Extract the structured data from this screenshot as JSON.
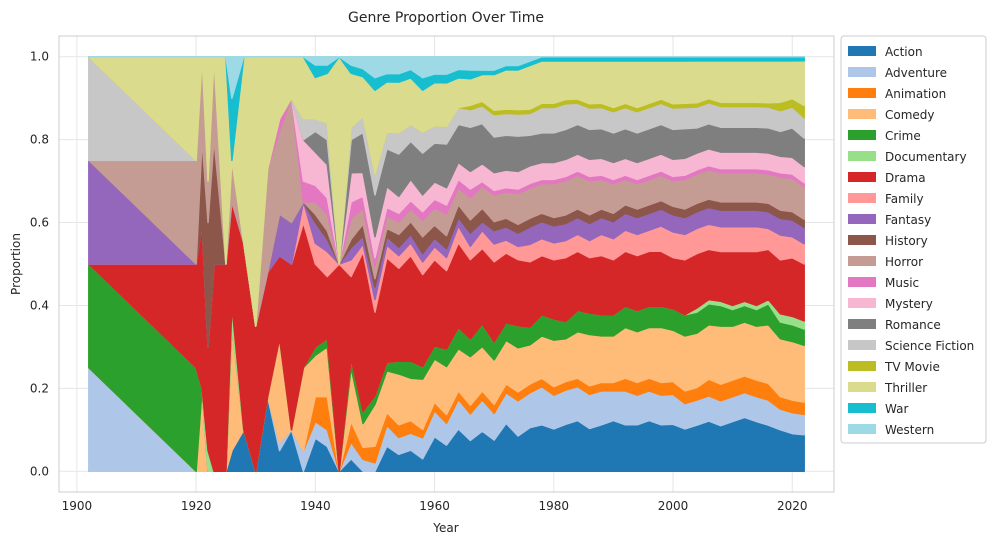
{
  "chart_data": {
    "type": "area",
    "stacked": true,
    "normalized": true,
    "title": "Genre Proportion Over Time",
    "xlabel": "Year",
    "ylabel": "Proportion",
    "xlim": [
      1897,
      2027
    ],
    "ylim": [
      -0.05,
      1.05
    ],
    "xticks": [
      1900,
      1920,
      1940,
      1960,
      1980,
      2000,
      2020
    ],
    "yticks": [
      0.0,
      0.2,
      0.4,
      0.6,
      0.8,
      1.0
    ],
    "grid": true,
    "legend_position": "outside-right",
    "x": [
      1902,
      1920,
      1921,
      1922,
      1923,
      1925,
      1926,
      1928,
      1930,
      1932,
      1934,
      1936,
      1938,
      1940,
      1942,
      1944,
      1946,
      1948,
      1950,
      1952,
      1954,
      1956,
      1958,
      1960,
      1962,
      1964,
      1966,
      1968,
      1970,
      1972,
      1974,
      1976,
      1978,
      1980,
      1982,
      1984,
      1986,
      1988,
      1990,
      1992,
      1994,
      1996,
      1998,
      2000,
      2002,
      2004,
      2006,
      2008,
      2010,
      2012,
      2014,
      2016,
      2018,
      2020,
      2022
    ],
    "series": [
      {
        "name": "Action",
        "color": "#1f77b4",
        "values": [
          0.0,
          0.0,
          0.0,
          0.0,
          0.0,
          0.0,
          0.05,
          0.1,
          0.0,
          0.18,
          0.05,
          0.1,
          0.0,
          0.08,
          0.06,
          0.0,
          0.03,
          0.0,
          0.0,
          0.06,
          0.04,
          0.05,
          0.03,
          0.08,
          0.06,
          0.1,
          0.07,
          0.09,
          0.07,
          0.11,
          0.08,
          0.1,
          0.11,
          0.1,
          0.11,
          0.12,
          0.1,
          0.11,
          0.12,
          0.11,
          0.11,
          0.12,
          0.11,
          0.11,
          0.1,
          0.11,
          0.12,
          0.11,
          0.12,
          0.13,
          0.12,
          0.11,
          0.1,
          0.09,
          0.09
        ]
      },
      {
        "name": "Adventure",
        "color": "#aec7e8",
        "values": [
          0.333,
          0.0,
          0.0,
          0.0,
          0.0,
          0.0,
          0.0,
          0.0,
          0.0,
          0.0,
          0.02,
          0.0,
          0.05,
          0.04,
          0.04,
          0.0,
          0.04,
          0.03,
          0.02,
          0.05,
          0.04,
          0.04,
          0.05,
          0.06,
          0.05,
          0.07,
          0.06,
          0.07,
          0.06,
          0.07,
          0.08,
          0.08,
          0.09,
          0.08,
          0.08,
          0.08,
          0.08,
          0.08,
          0.07,
          0.08,
          0.07,
          0.07,
          0.07,
          0.07,
          0.06,
          0.06,
          0.06,
          0.06,
          0.06,
          0.06,
          0.06,
          0.06,
          0.05,
          0.05,
          0.05
        ]
      },
      {
        "name": "Animation",
        "color": "#ff7f0e",
        "values": [
          0.0,
          0.0,
          0.0,
          0.0,
          0.0,
          0.0,
          0.0,
          0.0,
          0.0,
          0.0,
          0.0,
          0.0,
          0.0,
          0.06,
          0.08,
          0.0,
          0.05,
          0.03,
          0.04,
          0.03,
          0.03,
          0.03,
          0.02,
          0.02,
          0.02,
          0.02,
          0.02,
          0.02,
          0.02,
          0.02,
          0.02,
          0.02,
          0.02,
          0.02,
          0.02,
          0.02,
          0.02,
          0.02,
          0.02,
          0.03,
          0.03,
          0.03,
          0.03,
          0.03,
          0.03,
          0.03,
          0.04,
          0.04,
          0.04,
          0.04,
          0.04,
          0.04,
          0.03,
          0.03,
          0.03
        ]
      },
      {
        "name": "Comedy",
        "color": "#ffbb78",
        "values": [
          0.0,
          0.0,
          0.2,
          0.0,
          0.0,
          0.0,
          0.3,
          0.0,
          0.0,
          0.0,
          0.25,
          0.0,
          0.2,
          0.1,
          0.12,
          0.0,
          0.13,
          0.06,
          0.1,
          0.1,
          0.12,
          0.1,
          0.12,
          0.1,
          0.11,
          0.1,
          0.11,
          0.1,
          0.1,
          0.1,
          0.1,
          0.09,
          0.1,
          0.11,
          0.1,
          0.11,
          0.12,
          0.11,
          0.11,
          0.12,
          0.12,
          0.12,
          0.13,
          0.12,
          0.13,
          0.13,
          0.13,
          0.14,
          0.13,
          0.13,
          0.13,
          0.14,
          0.14,
          0.14,
          0.14
        ]
      },
      {
        "name": "Crime",
        "color": "#2ca02c",
        "values": [
          0.333,
          0.25,
          0.0,
          0.0,
          0.0,
          0.0,
          0.0,
          0.0,
          0.0,
          0.0,
          0.0,
          0.0,
          0.0,
          0.02,
          0.02,
          0.0,
          0.02,
          0.03,
          0.02,
          0.02,
          0.03,
          0.04,
          0.03,
          0.03,
          0.04,
          0.05,
          0.04,
          0.05,
          0.04,
          0.04,
          0.05,
          0.04,
          0.05,
          0.05,
          0.04,
          0.05,
          0.05,
          0.05,
          0.05,
          0.05,
          0.05,
          0.05,
          0.05,
          0.05,
          0.05,
          0.05,
          0.05,
          0.05,
          0.04,
          0.04,
          0.04,
          0.05,
          0.04,
          0.04,
          0.04
        ]
      },
      {
        "name": "Documentary",
        "color": "#98df8a",
        "values": [
          0.0,
          0.0,
          0.0,
          0.05,
          0.0,
          0.0,
          0.05,
          0.0,
          0.0,
          0.0,
          0.0,
          0.0,
          0.0,
          0.0,
          0.0,
          0.0,
          0.0,
          0.0,
          0.0,
          0.0,
          0.0,
          0.0,
          0.0,
          0.0,
          0.0,
          0.0,
          0.0,
          0.0,
          0.0,
          0.0,
          0.0,
          0.0,
          0.0,
          0.0,
          0.0,
          0.0,
          0.0,
          0.0,
          0.0,
          0.0,
          0.0,
          0.0,
          0.0,
          0.0,
          0.0,
          0.01,
          0.01,
          0.01,
          0.01,
          0.01,
          0.01,
          0.01,
          0.02,
          0.02,
          0.02
        ]
      },
      {
        "name": "Drama",
        "color": "#d62728",
        "values": [
          0.0,
          0.25,
          0.4,
          0.25,
          0.5,
          0.5,
          0.25,
          0.45,
          0.35,
          0.3,
          0.2,
          0.4,
          0.35,
          0.2,
          0.15,
          0.5,
          0.2,
          0.4,
          0.2,
          0.25,
          0.22,
          0.25,
          0.22,
          0.2,
          0.18,
          0.2,
          0.18,
          0.17,
          0.18,
          0.16,
          0.15,
          0.15,
          0.14,
          0.14,
          0.15,
          0.14,
          0.13,
          0.14,
          0.13,
          0.13,
          0.13,
          0.13,
          0.13,
          0.12,
          0.13,
          0.13,
          0.12,
          0.12,
          0.13,
          0.12,
          0.13,
          0.12,
          0.13,
          0.14,
          0.14
        ]
      },
      {
        "name": "Family",
        "color": "#ff9896",
        "values": [
          0.0,
          0.0,
          0.0,
          0.0,
          0.0,
          0.0,
          0.0,
          0.0,
          0.0,
          0.0,
          0.0,
          0.0,
          0.05,
          0.05,
          0.06,
          0.0,
          0.04,
          0.02,
          0.03,
          0.03,
          0.03,
          0.03,
          0.03,
          0.03,
          0.03,
          0.04,
          0.03,
          0.04,
          0.04,
          0.03,
          0.03,
          0.04,
          0.04,
          0.04,
          0.04,
          0.04,
          0.04,
          0.05,
          0.05,
          0.05,
          0.05,
          0.05,
          0.06,
          0.06,
          0.06,
          0.06,
          0.06,
          0.06,
          0.06,
          0.06,
          0.06,
          0.05,
          0.06,
          0.05,
          0.05
        ]
      },
      {
        "name": "Fantasy",
        "color": "#9467bd",
        "values": [
          0.333,
          0.0,
          0.0,
          0.0,
          0.0,
          0.0,
          0.0,
          0.0,
          0.0,
          0.0,
          0.1,
          0.1,
          0.0,
          0.05,
          0.03,
          0.0,
          0.03,
          0.02,
          0.03,
          0.02,
          0.02,
          0.02,
          0.02,
          0.02,
          0.02,
          0.02,
          0.03,
          0.02,
          0.03,
          0.03,
          0.03,
          0.04,
          0.04,
          0.04,
          0.04,
          0.04,
          0.04,
          0.04,
          0.04,
          0.04,
          0.04,
          0.04,
          0.04,
          0.04,
          0.04,
          0.04,
          0.04,
          0.04,
          0.04,
          0.04,
          0.04,
          0.04,
          0.04,
          0.04,
          0.04
        ]
      },
      {
        "name": "History",
        "color": "#8c564b",
        "values": [
          0.0,
          0.0,
          0.2,
          0.3,
          0.3,
          0.0,
          0.0,
          0.0,
          0.0,
          0.0,
          0.0,
          0.0,
          0.0,
          0.02,
          0.02,
          0.0,
          0.02,
          0.03,
          0.02,
          0.02,
          0.03,
          0.03,
          0.04,
          0.03,
          0.03,
          0.03,
          0.03,
          0.03,
          0.02,
          0.02,
          0.02,
          0.02,
          0.02,
          0.02,
          0.02,
          0.02,
          0.02,
          0.02,
          0.02,
          0.02,
          0.02,
          0.02,
          0.02,
          0.02,
          0.02,
          0.02,
          0.02,
          0.02,
          0.02,
          0.02,
          0.02,
          0.02,
          0.02,
          0.02,
          0.02
        ]
      },
      {
        "name": "Horror",
        "color": "#c49c94",
        "values": [
          0.0,
          0.25,
          0.2,
          0.1,
          0.2,
          0.0,
          0.1,
          0.0,
          0.0,
          0.25,
          0.2,
          0.3,
          0.0,
          0.03,
          0.04,
          0.0,
          0.05,
          0.04,
          0.03,
          0.03,
          0.03,
          0.03,
          0.04,
          0.04,
          0.05,
          0.04,
          0.05,
          0.05,
          0.06,
          0.06,
          0.07,
          0.07,
          0.07,
          0.08,
          0.08,
          0.08,
          0.08,
          0.07,
          0.07,
          0.06,
          0.06,
          0.06,
          0.06,
          0.06,
          0.07,
          0.07,
          0.07,
          0.07,
          0.07,
          0.07,
          0.07,
          0.07,
          0.08,
          0.08,
          0.08
        ]
      },
      {
        "name": "Music",
        "color": "#e377c2",
        "values": [
          0.0,
          0.0,
          0.0,
          0.0,
          0.0,
          0.0,
          0.0,
          0.0,
          0.0,
          0.0,
          0.03,
          0.0,
          0.05,
          0.04,
          0.04,
          0.0,
          0.04,
          0.03,
          0.02,
          0.02,
          0.02,
          0.02,
          0.02,
          0.02,
          0.02,
          0.02,
          0.02,
          0.01,
          0.01,
          0.01,
          0.01,
          0.01,
          0.01,
          0.01,
          0.01,
          0.01,
          0.01,
          0.01,
          0.01,
          0.01,
          0.01,
          0.01,
          0.01,
          0.01,
          0.01,
          0.01,
          0.01,
          0.01,
          0.01,
          0.01,
          0.01,
          0.01,
          0.01,
          0.01,
          0.01
        ]
      },
      {
        "name": "Mystery",
        "color": "#f7b6d2",
        "values": [
          0.0,
          0.0,
          0.0,
          0.0,
          0.0,
          0.0,
          0.0,
          0.0,
          0.0,
          0.0,
          0.0,
          0.0,
          0.1,
          0.08,
          0.08,
          0.0,
          0.07,
          0.06,
          0.05,
          0.05,
          0.04,
          0.05,
          0.04,
          0.04,
          0.04,
          0.04,
          0.04,
          0.04,
          0.04,
          0.04,
          0.04,
          0.04,
          0.04,
          0.04,
          0.04,
          0.04,
          0.04,
          0.04,
          0.04,
          0.04,
          0.04,
          0.04,
          0.04,
          0.04,
          0.04,
          0.04,
          0.04,
          0.04,
          0.04,
          0.04,
          0.04,
          0.04,
          0.04,
          0.04,
          0.04
        ]
      },
      {
        "name": "Romance",
        "color": "#7f7f7f",
        "values": [
          0.0,
          0.0,
          0.0,
          0.0,
          0.0,
          0.0,
          0.0,
          0.0,
          0.0,
          0.0,
          0.0,
          0.0,
          0.0,
          0.05,
          0.06,
          0.0,
          0.08,
          0.1,
          0.1,
          0.09,
          0.1,
          0.09,
          0.1,
          0.09,
          0.1,
          0.09,
          0.1,
          0.09,
          0.08,
          0.08,
          0.08,
          0.07,
          0.07,
          0.07,
          0.07,
          0.07,
          0.07,
          0.07,
          0.07,
          0.07,
          0.07,
          0.07,
          0.07,
          0.07,
          0.07,
          0.06,
          0.06,
          0.06,
          0.06,
          0.06,
          0.06,
          0.06,
          0.06,
          0.07,
          0.07
        ]
      },
      {
        "name": "Science Fiction",
        "color": "#c7c7c7",
        "values": [
          0.333,
          0.0,
          0.0,
          0.0,
          0.0,
          0.0,
          0.0,
          0.0,
          0.0,
          0.0,
          0.0,
          0.0,
          0.05,
          0.03,
          0.04,
          0.0,
          0.03,
          0.04,
          0.05,
          0.04,
          0.05,
          0.04,
          0.05,
          0.04,
          0.04,
          0.04,
          0.04,
          0.04,
          0.05,
          0.05,
          0.05,
          0.05,
          0.06,
          0.06,
          0.06,
          0.05,
          0.05,
          0.05,
          0.05,
          0.05,
          0.05,
          0.05,
          0.05,
          0.05,
          0.05,
          0.05,
          0.05,
          0.05,
          0.05,
          0.05,
          0.05,
          0.05,
          0.05,
          0.05,
          0.05
        ]
      },
      {
        "name": "TV Movie",
        "color": "#bcbd22",
        "values": [
          0.0,
          0.0,
          0.0,
          0.0,
          0.0,
          0.0,
          0.0,
          0.0,
          0.0,
          0.0,
          0.0,
          0.0,
          0.0,
          0.0,
          0.0,
          0.0,
          0.0,
          0.0,
          0.0,
          0.0,
          0.0,
          0.0,
          0.0,
          0.0,
          0.0,
          0.0,
          0.01,
          0.01,
          0.01,
          0.01,
          0.01,
          0.01,
          0.01,
          0.01,
          0.01,
          0.01,
          0.01,
          0.01,
          0.01,
          0.01,
          0.01,
          0.01,
          0.01,
          0.01,
          0.01,
          0.01,
          0.01,
          0.01,
          0.01,
          0.01,
          0.01,
          0.01,
          0.02,
          0.02,
          0.03
        ]
      },
      {
        "name": "Thriller",
        "color": "#dbdb8d",
        "values": [
          0.0,
          0.25,
          0.0,
          0.3,
          0.0,
          0.5,
          0.0,
          0.45,
          0.65,
          0.27,
          0.15,
          0.1,
          0.15,
          0.1,
          0.12,
          0.5,
          0.13,
          0.1,
          0.2,
          0.12,
          0.12,
          0.11,
          0.1,
          0.1,
          0.1,
          0.07,
          0.06,
          0.06,
          0.08,
          0.09,
          0.09,
          0.1,
          0.1,
          0.1,
          0.09,
          0.09,
          0.1,
          0.1,
          0.11,
          0.1,
          0.11,
          0.1,
          0.09,
          0.1,
          0.1,
          0.1,
          0.09,
          0.1,
          0.1,
          0.1,
          0.1,
          0.1,
          0.1,
          0.09,
          0.11
        ]
      },
      {
        "name": "War",
        "color": "#17becf",
        "values": [
          0.0,
          0.0,
          0.0,
          0.0,
          0.0,
          0.0,
          0.15,
          0.0,
          0.0,
          0.0,
          0.0,
          0.0,
          0.0,
          0.03,
          0.02,
          0.0,
          0.02,
          0.02,
          0.03,
          0.02,
          0.02,
          0.02,
          0.03,
          0.02,
          0.02,
          0.02,
          0.02,
          0.01,
          0.01,
          0.01,
          0.01,
          0.01,
          0.01,
          0.01,
          0.01,
          0.01,
          0.01,
          0.01,
          0.01,
          0.01,
          0.01,
          0.01,
          0.01,
          0.01,
          0.01,
          0.01,
          0.01,
          0.01,
          0.01,
          0.01,
          0.01,
          0.01,
          0.01,
          0.01,
          0.01
        ]
      },
      {
        "name": "Western",
        "color": "#9edae5",
        "values": [
          0.0,
          0.0,
          0.0,
          0.0,
          0.0,
          0.0,
          0.1,
          0.0,
          0.0,
          0.0,
          0.0,
          0.0,
          0.0,
          0.02,
          0.02,
          0.0,
          0.02,
          0.03,
          0.05,
          0.04,
          0.04,
          0.03,
          0.05,
          0.04,
          0.04,
          0.03,
          0.03,
          0.03,
          0.03,
          0.02,
          0.02,
          0.01,
          0.0,
          0.0,
          0.0,
          0.0,
          0.0,
          0.0,
          0.0,
          0.0,
          0.0,
          0.0,
          0.0,
          0.0,
          0.0,
          0.0,
          0.0,
          0.0,
          0.0,
          0.0,
          0.0,
          0.0,
          0.0,
          0.0,
          0.0
        ]
      }
    ]
  }
}
